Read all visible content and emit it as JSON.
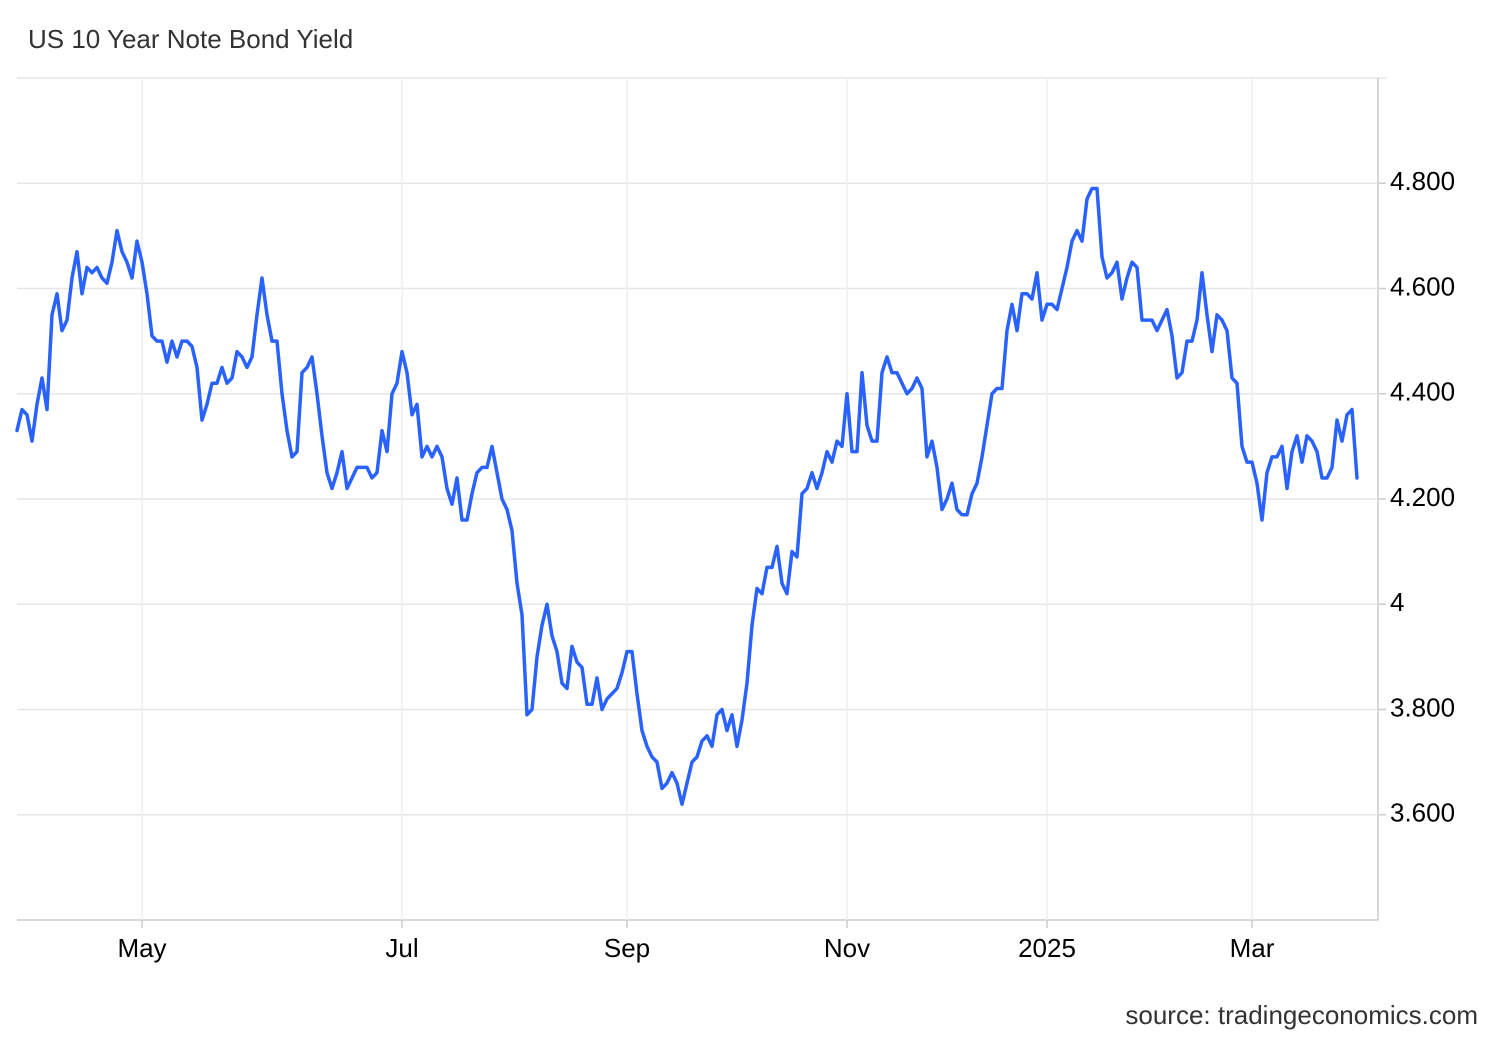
{
  "chart_data": {
    "type": "line",
    "title": "US 10 Year Note Bond Yield",
    "source": "source: tradingeconomics.com",
    "color": "#2962ff",
    "grid": true,
    "ylim": [
      3.4,
      5.0
    ],
    "yticks": [
      {
        "value": 3.6,
        "label": "3.600"
      },
      {
        "value": 3.8,
        "label": "3.800"
      },
      4,
      {
        "value": 4.2,
        "label": "4.200"
      },
      {
        "value": 4.4,
        "label": "4.400"
      },
      {
        "value": 4.6,
        "label": "4.600"
      },
      {
        "value": 4.8,
        "label": "4.800"
      }
    ],
    "categories": [
      null,
      null,
      null,
      null,
      null,
      null,
      null,
      null,
      null,
      null,
      null,
      null,
      null,
      null,
      null,
      null,
      null,
      null,
      null,
      null,
      null,
      null,
      null,
      null,
      null,
      "May",
      null,
      null,
      null,
      null,
      null,
      null,
      null,
      null,
      null,
      null,
      null,
      null,
      null,
      null,
      null,
      null,
      null,
      null,
      null,
      null,
      null,
      null,
      null,
      null,
      null,
      null,
      null,
      null,
      null,
      null,
      null,
      null,
      null,
      null,
      null,
      null,
      null,
      null,
      null,
      null,
      null,
      null,
      null,
      null,
      null,
      null,
      null,
      null,
      null,
      null,
      null,
      "Jul",
      null,
      null,
      null,
      null,
      null,
      null,
      null,
      null,
      null,
      null,
      null,
      null,
      null,
      null,
      null,
      null,
      null,
      null,
      null,
      null,
      null,
      null,
      null,
      null,
      null,
      null,
      null,
      null,
      null,
      null,
      null,
      null,
      null,
      null,
      null,
      null,
      null,
      null,
      null,
      null,
      null,
      null,
      null,
      null,
      "Sep",
      null,
      null,
      null,
      null,
      null,
      null,
      null,
      null,
      null,
      null,
      null,
      null,
      null,
      null,
      null,
      null,
      null,
      null,
      null,
      null,
      null,
      null,
      null,
      null,
      null,
      null,
      null,
      null,
      null,
      null,
      null,
      null,
      null,
      null,
      null,
      null,
      null,
      null,
      null,
      null,
      null,
      null,
      null,
      "Nov",
      null,
      null,
      null,
      null,
      null,
      null,
      null,
      null,
      null,
      null,
      null,
      null,
      null,
      null,
      null,
      null,
      null,
      null,
      null,
      null,
      null,
      null,
      null,
      null,
      null,
      null,
      null,
      null,
      null,
      null,
      null,
      null,
      null,
      null,
      null,
      null,
      null,
      null,
      null,
      "2025",
      null,
      null,
      null,
      null,
      null,
      null,
      null,
      null,
      null,
      null,
      null,
      null,
      null,
      null,
      null,
      null,
      null,
      null,
      null,
      null,
      null,
      null,
      null,
      null,
      null,
      null,
      null,
      null,
      null,
      null,
      null,
      null,
      null,
      null,
      null,
      null,
      null,
      null,
      null,
      null,
      "Mar",
      null,
      null,
      null,
      null,
      null,
      null,
      null,
      null,
      null,
      null,
      null,
      null,
      null,
      null,
      null,
      null,
      null,
      null,
      null,
      null,
      null
    ],
    "values": [
      4.33,
      4.37,
      4.36,
      4.31,
      4.38,
      4.43,
      4.37,
      4.55,
      4.59,
      4.52,
      4.54,
      4.62,
      4.67,
      4.59,
      4.64,
      4.63,
      4.64,
      4.62,
      4.61,
      4.65,
      4.71,
      4.67,
      4.65,
      4.62,
      4.69,
      4.65,
      4.59,
      4.51,
      4.5,
      4.5,
      4.46,
      4.5,
      4.47,
      4.5,
      4.5,
      4.49,
      4.45,
      4.35,
      4.38,
      4.42,
      4.42,
      4.45,
      4.42,
      4.43,
      4.48,
      4.47,
      4.45,
      4.47,
      4.55,
      4.62,
      4.55,
      4.5,
      4.5,
      4.4,
      4.33,
      4.28,
      4.29,
      4.44,
      4.45,
      4.47,
      4.4,
      4.32,
      4.25,
      4.22,
      4.25,
      4.29,
      4.22,
      4.24,
      4.26,
      4.26,
      4.26,
      4.24,
      4.25,
      4.33,
      4.29,
      4.4,
      4.42,
      4.48,
      4.44,
      4.36,
      4.38,
      4.28,
      4.3,
      4.28,
      4.3,
      4.28,
      4.22,
      4.19,
      4.24,
      4.16,
      4.16,
      4.21,
      4.25,
      4.26,
      4.26,
      4.3,
      4.25,
      4.2,
      4.18,
      4.14,
      4.04,
      3.98,
      3.79,
      3.8,
      3.9,
      3.96,
      4.0,
      3.94,
      3.91,
      3.85,
      3.84,
      3.92,
      3.89,
      3.88,
      3.81,
      3.81,
      3.86,
      3.8,
      3.82,
      3.83,
      3.84,
      3.87,
      3.91,
      3.91,
      3.83,
      3.76,
      3.73,
      3.71,
      3.7,
      3.65,
      3.66,
      3.68,
      3.66,
      3.62,
      3.66,
      3.7,
      3.71,
      3.74,
      3.75,
      3.73,
      3.79,
      3.8,
      3.76,
      3.79,
      3.73,
      3.78,
      3.85,
      3.96,
      4.03,
      4.02,
      4.07,
      4.07,
      4.11,
      4.04,
      4.02,
      4.1,
      4.09,
      4.21,
      4.22,
      4.25,
      4.22,
      4.25,
      4.29,
      4.27,
      4.31,
      4.3,
      4.4,
      4.29,
      4.29,
      4.44,
      4.34,
      4.31,
      4.31,
      4.44,
      4.47,
      4.44,
      4.44,
      4.42,
      4.4,
      4.41,
      4.43,
      4.41,
      4.28,
      4.31,
      4.26,
      4.18,
      4.2,
      4.23,
      4.18,
      4.17,
      4.17,
      4.21,
      4.23,
      4.28,
      4.34,
      4.4,
      4.41,
      4.41,
      4.52,
      4.57,
      4.52,
      4.59,
      4.59,
      4.58,
      4.63,
      4.54,
      4.57,
      4.57,
      4.56,
      4.6,
      4.64,
      4.69,
      4.71,
      4.69,
      4.77,
      4.79,
      4.79,
      4.66,
      4.62,
      4.63,
      4.65,
      4.58,
      4.62,
      4.65,
      4.64,
      4.54,
      4.54,
      4.54,
      4.52,
      4.54,
      4.56,
      4.51,
      4.43,
      4.44,
      4.5,
      4.5,
      4.54,
      4.63,
      4.55,
      4.48,
      4.55,
      4.54,
      4.52,
      4.43,
      4.42,
      4.3,
      4.27,
      4.27,
      4.23,
      4.16,
      4.25,
      4.28,
      4.28,
      4.3,
      4.22,
      4.29,
      4.32,
      4.27,
      4.32,
      4.31,
      4.29,
      4.24,
      4.24,
      4.26,
      4.35,
      4.31,
      4.36,
      4.37,
      4.24
    ]
  }
}
